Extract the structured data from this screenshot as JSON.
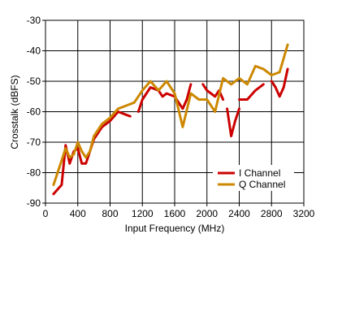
{
  "chart_data": {
    "type": "line",
    "title": "",
    "xlabel": "Input Frequency (MHz)",
    "ylabel": "Crosstalk (dBFS)",
    "xlim": [
      0,
      3200
    ],
    "ylim": [
      -90,
      -30
    ],
    "xticks": [
      "0",
      "400",
      "800",
      "1200",
      "1600",
      "2000",
      "2400",
      "2800",
      "3200"
    ],
    "yticks": [
      "-30",
      "-40",
      "-50",
      "-60",
      "-70",
      "-80",
      "-90"
    ],
    "grid": true,
    "legend_position": "lower-right",
    "series": [
      {
        "name": "I Channel",
        "color": "#cc0000",
        "segments": [
          [
            [
              100,
              -87
            ],
            [
              200,
              -84
            ],
            [
              250,
              -71
            ],
            [
              300,
              -77
            ],
            [
              350,
              -73
            ],
            [
              400,
              -72
            ],
            [
              450,
              -77
            ],
            [
              500,
              -77
            ],
            [
              550,
              -73
            ],
            [
              600,
              -69
            ],
            [
              700,
              -65
            ],
            [
              800,
              -63
            ],
            [
              900,
              -60
            ],
            [
              1000,
              -61
            ],
            [
              1050,
              -61.5
            ]
          ],
          [
            [
              1150,
              -60
            ],
            [
              1200,
              -56
            ],
            [
              1300,
              -52
            ],
            [
              1400,
              -53
            ],
            [
              1450,
              -55
            ],
            [
              1500,
              -54
            ],
            [
              1600,
              -55
            ],
            [
              1700,
              -59
            ],
            [
              1750,
              -56
            ],
            [
              1800,
              -51
            ]
          ],
          [
            [
              1950,
              -51
            ],
            [
              2000,
              -53
            ],
            [
              2050,
              -54
            ],
            [
              2100,
              -55
            ],
            [
              2150,
              -53
            ],
            [
              2200,
              -56
            ]
          ],
          [
            [
              2250,
              -59
            ],
            [
              2300,
              -68
            ],
            [
              2350,
              -63
            ],
            [
              2400,
              -59
            ]
          ],
          [
            [
              2400,
              -56
            ],
            [
              2500,
              -56
            ],
            [
              2600,
              -53
            ],
            [
              2700,
              -51
            ]
          ],
          [
            [
              2800,
              -50
            ],
            [
              2850,
              -52
            ],
            [
              2900,
              -55
            ],
            [
              2950,
              -52
            ],
            [
              3000,
              -46
            ]
          ]
        ]
      },
      {
        "name": "Q Channel",
        "color": "#cc8800",
        "segments": [
          [
            [
              100,
              -84
            ],
            [
              200,
              -76
            ],
            [
              250,
              -72
            ],
            [
              300,
              -75
            ],
            [
              350,
              -74
            ],
            [
              400,
              -70
            ],
            [
              450,
              -73
            ],
            [
              500,
              -75
            ],
            [
              550,
              -73
            ],
            [
              600,
              -68
            ],
            [
              700,
              -64
            ],
            [
              800,
              -62
            ],
            [
              900,
              -59
            ],
            [
              1000,
              -58
            ],
            [
              1100,
              -57
            ],
            [
              1200,
              -53
            ],
            [
              1300,
              -50
            ],
            [
              1400,
              -53
            ],
            [
              1500,
              -50
            ],
            [
              1600,
              -54
            ],
            [
              1700,
              -65
            ],
            [
              1800,
              -54
            ],
            [
              1900,
              -56
            ],
            [
              2000,
              -56
            ],
            [
              2100,
              -60
            ],
            [
              2200,
              -49
            ],
            [
              2300,
              -51
            ],
            [
              2400,
              -49
            ],
            [
              2500,
              -51
            ],
            [
              2600,
              -45
            ],
            [
              2700,
              -46
            ],
            [
              2800,
              -48
            ],
            [
              2900,
              -47
            ],
            [
              3000,
              -38
            ]
          ]
        ]
      }
    ],
    "legend": [
      {
        "label": "I Channel",
        "color": "#cc0000"
      },
      {
        "label": "Q Channel",
        "color": "#cc8800"
      }
    ]
  }
}
